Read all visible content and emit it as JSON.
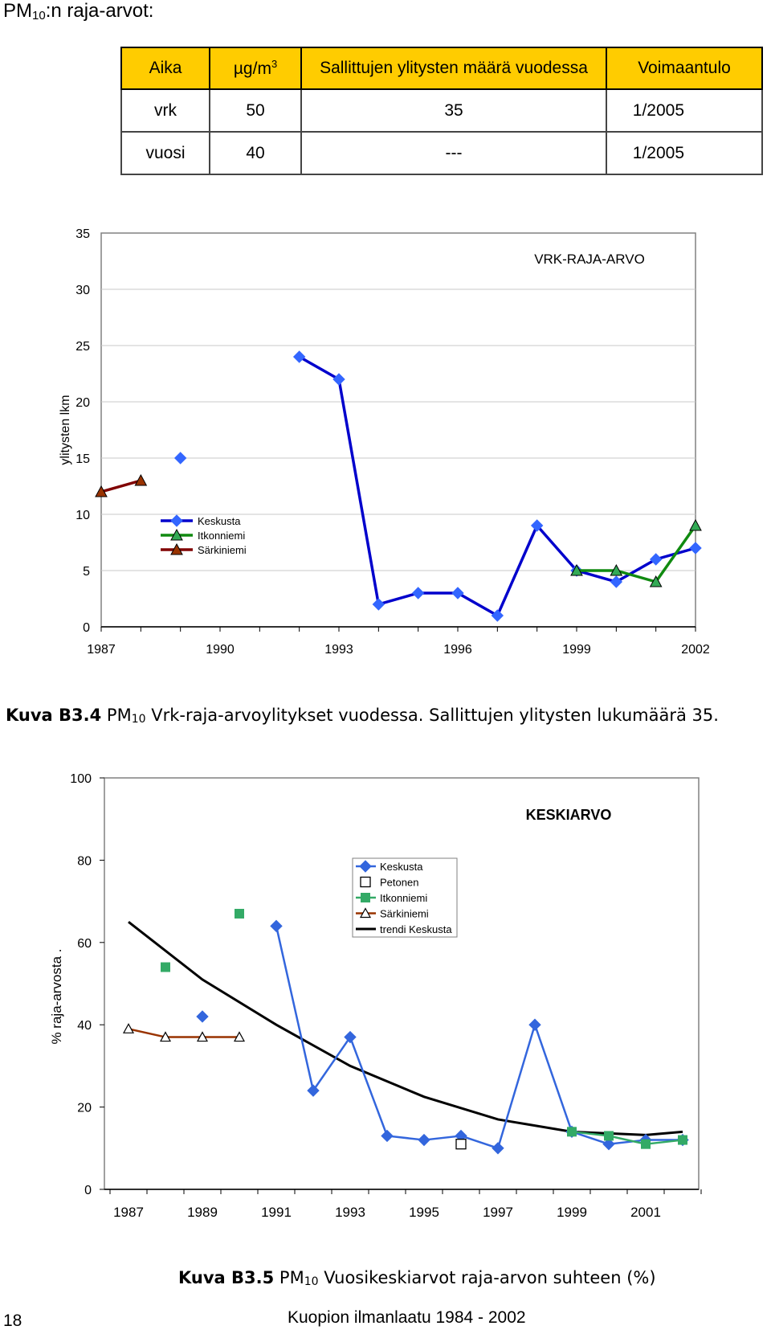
{
  "heading": {
    "main": "PM",
    "sub": "10",
    "rest": ":n raja-arvot:"
  },
  "limits_table": {
    "headers": [
      "Aika",
      "µg/m",
      "Sallittujen ylitysten määrä vuodessa",
      "Voimaantulo"
    ],
    "header_unit_sup": "3",
    "rows": [
      [
        "vrk",
        "50",
        "35",
        "1/2005"
      ],
      [
        "vuosi",
        "40",
        "---",
        "1/2005"
      ]
    ]
  },
  "chart_data": [
    {
      "type": "line",
      "title": "",
      "annotation": "VRK-RAJA-ARVO",
      "ylabel": "ylitysten lkm",
      "xlabel": "",
      "xlim": [
        1987,
        2002
      ],
      "ylim": [
        0,
        35
      ],
      "x_ticks": [
        1987,
        1990,
        1993,
        1996,
        1999,
        2002
      ],
      "y_ticks": [
        0,
        5,
        10,
        15,
        20,
        25,
        30,
        35
      ],
      "grid": "horizontal",
      "legend_position": "left",
      "series": [
        {
          "name": "Keskusta",
          "color": "#0000cc",
          "marker_color": "#3366ff",
          "marker": "diamond",
          "points": [
            [
              1989,
              15
            ],
            [
              1992,
              24
            ],
            [
              1993,
              22
            ],
            [
              1994,
              2
            ],
            [
              1995,
              3
            ],
            [
              1996,
              3
            ],
            [
              1997,
              1
            ],
            [
              1998,
              9
            ],
            [
              1999,
              5
            ],
            [
              2000,
              4
            ],
            [
              2001,
              6
            ],
            [
              2002,
              7
            ]
          ]
        },
        {
          "name": "Itkonniemi",
          "color": "#108a10",
          "marker_color": "#33aa55",
          "marker": "triangle",
          "points": [
            [
              1999,
              5
            ],
            [
              2000,
              5
            ],
            [
              2001,
              4
            ],
            [
              2002,
              9
            ]
          ]
        },
        {
          "name": "Särkiniemi",
          "color": "#800000",
          "marker_color": "#993300",
          "marker": "triangle",
          "points": [
            [
              1987,
              12
            ],
            [
              1988,
              13
            ]
          ]
        }
      ]
    },
    {
      "type": "line",
      "title": "",
      "annotation": "KESKIARVO",
      "ylabel": "% raja-arvosta .",
      "xlabel": "",
      "xlim": [
        1987,
        2002
      ],
      "ylim": [
        0,
        100
      ],
      "x_ticks": [
        1987,
        1989,
        1991,
        1993,
        1995,
        1997,
        1999,
        2001
      ],
      "y_ticks": [
        0,
        20,
        40,
        60,
        80,
        100
      ],
      "grid": "none",
      "legend_position": "top-right",
      "series": [
        {
          "name": "Keskusta",
          "color": "#3366dd",
          "marker": "diamond",
          "line": true,
          "points": [
            [
              1989,
              42
            ],
            [
              1991,
              64
            ],
            [
              1992,
              24
            ],
            [
              1993,
              37
            ],
            [
              1994,
              13
            ],
            [
              1995,
              12
            ],
            [
              1996,
              13
            ],
            [
              1997,
              10
            ],
            [
              1998,
              40
            ],
            [
              1999,
              14
            ],
            [
              2000,
              11
            ],
            [
              2001,
              12
            ],
            [
              2002,
              12
            ]
          ]
        },
        {
          "name": "Petonen",
          "color": "#000000",
          "marker": "square-open",
          "line": false,
          "points": [
            [
              1996,
              11
            ]
          ]
        },
        {
          "name": "Itkonniemi",
          "color": "#33aa66",
          "marker": "square",
          "line": true,
          "points": [
            [
              1988,
              54
            ],
            [
              1990,
              67
            ],
            [
              1999,
              14
            ],
            [
              2000,
              13
            ],
            [
              2001,
              11
            ],
            [
              2002,
              12
            ]
          ]
        },
        {
          "name": "Särkiniemi",
          "color": "#993300",
          "marker": "triangle-open",
          "line": true,
          "points": [
            [
              1987,
              39
            ],
            [
              1988,
              37
            ],
            [
              1989,
              37
            ],
            [
              1990,
              37
            ]
          ]
        },
        {
          "name": "trendi Keskusta",
          "color": "#000000",
          "marker": "none",
          "line": true,
          "points": [
            [
              1987,
              65
            ],
            [
              1989,
              51
            ],
            [
              1991,
              40
            ],
            [
              1993,
              30
            ],
            [
              1995,
              22.5
            ],
            [
              1997,
              17
            ],
            [
              1999,
              14
            ],
            [
              2001,
              13.2
            ],
            [
              2002,
              14
            ]
          ]
        }
      ]
    }
  ],
  "captions": {
    "fig1": {
      "bold": "Kuva B3.4",
      "pre": " PM",
      "sub": "10",
      "post": " Vrk-raja-arvoylitykset vuodessa. Sallittujen ylitysten lukumäärä 35."
    },
    "fig2": {
      "bold": "Kuva B3.5",
      "pre": " PM",
      "sub": "10",
      "post": " Vuosikeskiarvot raja-arvon suhteen (%)"
    }
  },
  "footer": {
    "page_number": "18",
    "title": "Kuopion ilmanlaatu 1984 - 2002"
  }
}
